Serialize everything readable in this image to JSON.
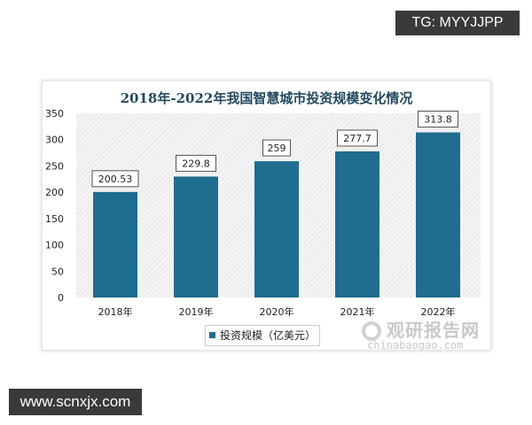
{
  "watermark_top": "TG: MYYJJPP",
  "watermark_bottom": "www.scnxjx.com",
  "logo": {
    "cn": "观研报告网",
    "en": "chinabaogao.com"
  },
  "colors": {
    "bar": "#1f6d8f",
    "title": "#244a60"
  },
  "chart_data": {
    "type": "bar",
    "title": "2018年-2022年我国智慧城市投资规模变化情况",
    "categories": [
      "2018年",
      "2019年",
      "2020年",
      "2021年",
      "2022年"
    ],
    "series": [
      {
        "name": "投资规模（亿美元）",
        "values": [
          200.53,
          229.8,
          259,
          277.7,
          313.8
        ]
      }
    ],
    "data_labels": [
      "200.53",
      "229.8",
      "259",
      "277.7",
      "313.8"
    ],
    "ylim": [
      0,
      350
    ],
    "yticks": [
      0,
      50,
      100,
      150,
      200,
      250,
      300,
      350
    ],
    "grid": false,
    "legend": "bottom"
  }
}
